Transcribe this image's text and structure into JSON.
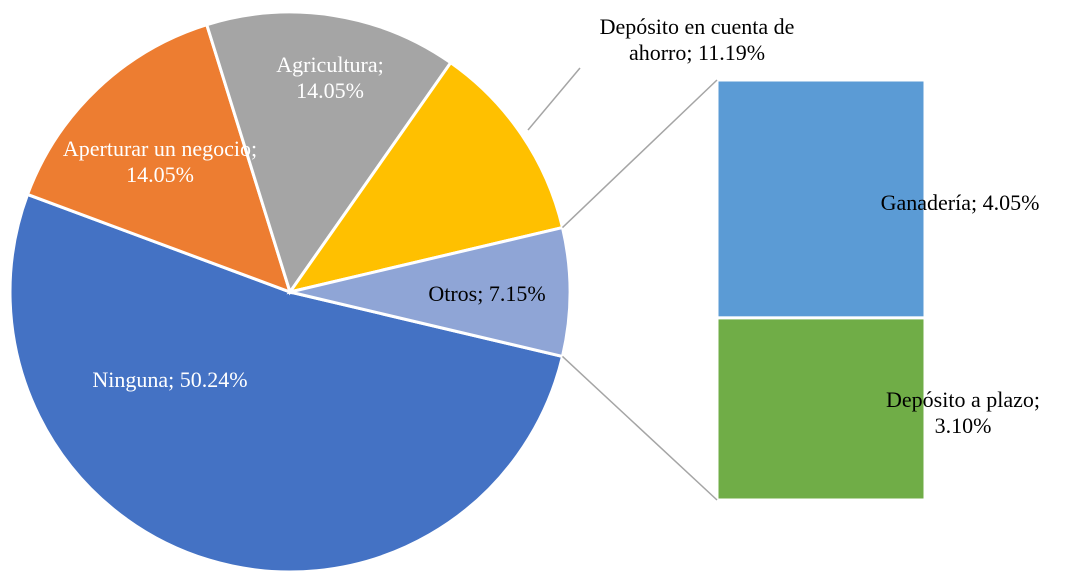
{
  "chart_data": {
    "type": "bar-of-pie",
    "categories": [
      "Ninguna",
      "Aperturar un negocio",
      "Agricultura",
      "Depósito en cuenta de ahorro",
      "Otros"
    ],
    "values": [
      50.24,
      14.05,
      14.05,
      11.19,
      7.15
    ],
    "value_labels": [
      "50.24%",
      "14.05%",
      "14.05%",
      "11.19%",
      "7.15%"
    ],
    "colors": [
      "#4472c4",
      "#ed7d31",
      "#a5a5a5",
      "#ffc000",
      "#8fa5d6"
    ],
    "label_separator": "; ",
    "secondary": {
      "categories": [
        "Ganadería",
        "Depósito a plazo"
      ],
      "values": [
        4.05,
        3.1
      ],
      "value_labels": [
        "4.05%",
        "3.10%"
      ],
      "colors": [
        "#5b9bd5",
        "#70ad47"
      ]
    }
  }
}
